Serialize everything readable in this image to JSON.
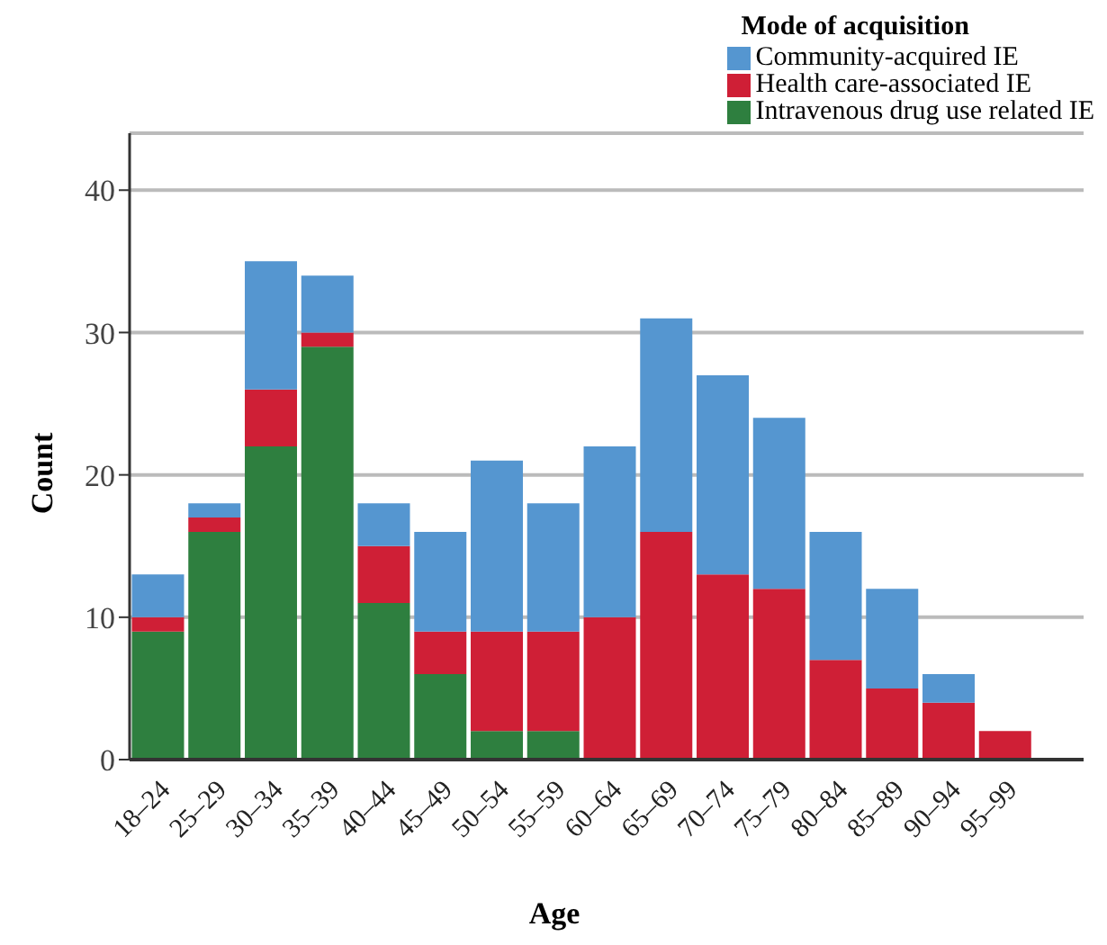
{
  "chart_data": {
    "type": "bar",
    "stacked": true,
    "xlabel": "Age",
    "ylabel": "Count",
    "legend_title": "Mode of acquisition",
    "legend": "top right",
    "grid": "y",
    "categories": [
      "18–24",
      "25–29",
      "30–34",
      "35–39",
      "40–44",
      "45–49",
      "50–54",
      "55–59",
      "60–64",
      "65–69",
      "70–74",
      "75–79",
      "80–84",
      "85–89",
      "90–94",
      "95–99"
    ],
    "series": [
      {
        "name": "Intravenous drug use related IE",
        "color": "#2e7f3f",
        "values": [
          9,
          16,
          22,
          29,
          11,
          6,
          2,
          2,
          0,
          0,
          0,
          0,
          0,
          0,
          0,
          0
        ]
      },
      {
        "name": "Health care-associated IE",
        "color": "#cf1f36",
        "values": [
          1,
          1,
          4,
          1,
          4,
          3,
          7,
          7,
          10,
          16,
          13,
          12,
          7,
          5,
          4,
          2
        ]
      },
      {
        "name": "Community-acquired IE",
        "color": "#5596d0",
        "values": [
          3,
          1,
          9,
          4,
          3,
          7,
          12,
          9,
          12,
          15,
          14,
          12,
          9,
          7,
          2,
          0
        ]
      }
    ],
    "ylim": [
      0,
      44
    ],
    "yticks": [
      0,
      10,
      20,
      30,
      40
    ]
  }
}
